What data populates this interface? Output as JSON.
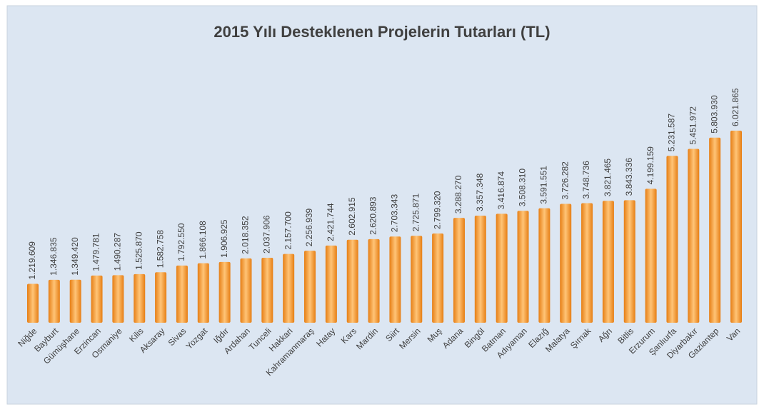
{
  "chart_data": {
    "type": "bar",
    "title": "2015 Yılı Desteklenen Projelerin Tutarları (TL)",
    "categories": [
      "Niğde",
      "Bayburt",
      "Gümüşhane",
      "Erzincan",
      "Osmaniye",
      "Kilis",
      "Aksaray",
      "Sivas",
      "Yozgat",
      "Iğdır",
      "Ardahan",
      "Tunceli",
      "Hakkari",
      "Kahramanmaraş",
      "Hatay",
      "Kars",
      "Mardin",
      "Siirt",
      "Mersin",
      "Muş",
      "Adana",
      "Bingöl",
      "Batman",
      "Adıyaman",
      "Elazığ",
      "Malatya",
      "Şırnak",
      "Ağrı",
      "Bitlis",
      "Erzurum",
      "Şanlıurfa",
      "Diyarbakır",
      "Gaziantep",
      "Van"
    ],
    "values": [
      1219609,
      1346835,
      1349420,
      1479781,
      1490287,
      1525870,
      1582758,
      1792550,
      1866108,
      1906925,
      2018352,
      2037906,
      2157700,
      2256939,
      2421744,
      2602915,
      2620893,
      2703343,
      2725871,
      2799320,
      3288270,
      3357348,
      3416874,
      3508310,
      3591551,
      3726282,
      3748736,
      3821465,
      3843336,
      4199159,
      5231587,
      5451972,
      5803930,
      6021865
    ],
    "value_labels": [
      "1.219.609",
      "1.346.835",
      "1.349.420",
      "1.479.781",
      "1.490.287",
      "1.525.870",
      "1.582.758",
      "1.792.550",
      "1.866.108",
      "1.906.925",
      "2.018.352",
      "2.037.906",
      "2.157.700",
      "2.256.939",
      "2.421.744",
      "2.602.915",
      "2.620.893",
      "2.703.343",
      "2.725.871",
      "2.799.320",
      "3.288.270",
      "3.357.348",
      "3.416.874",
      "3.508.310",
      "3.591.551",
      "3.726.282",
      "3.748.736",
      "3.821.465",
      "3.843.336",
      "4.199.159",
      "5.231.587",
      "5.451.972",
      "5.803.930",
      "6.021.865"
    ],
    "color": "#e67e14"
  }
}
